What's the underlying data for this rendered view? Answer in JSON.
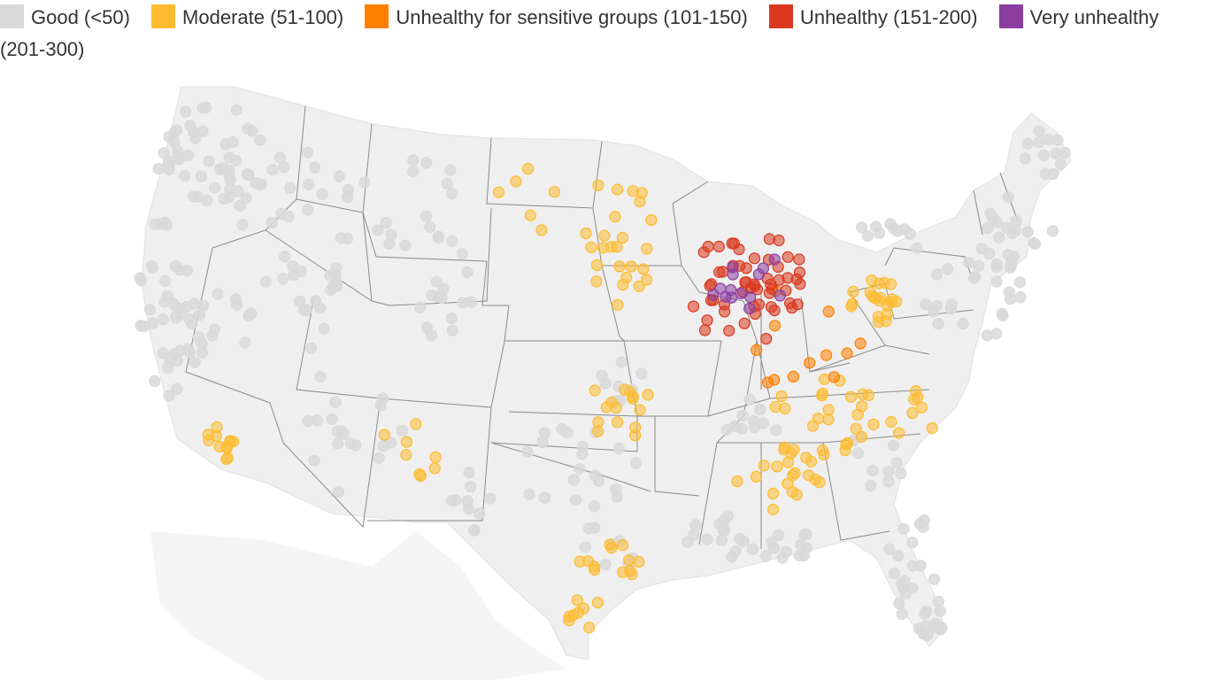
{
  "legend": {
    "items": [
      {
        "label": "Good (<50)",
        "color": "#d9d9d9"
      },
      {
        "label": "Moderate (51-100)",
        "color": "#fdbb30"
      },
      {
        "label": "Unhealthy for sensitive groups (101-150)",
        "color": "#ff7f00"
      },
      {
        "label": "Unhealthy (151-200)",
        "color": "#d9381e"
      },
      {
        "label": "Very unhealthy (201-300)",
        "color": "#8b3ea0"
      }
    ]
  },
  "map": {
    "background_color": "#efefef",
    "state_border_color": "#8a8a8a",
    "marker_shape": "circle",
    "station_counts": {
      "good": 290,
      "moderate": 140,
      "unhealthy_sensitive": 12,
      "unhealthy": 55,
      "very_unhealthy": 14
    }
  }
}
